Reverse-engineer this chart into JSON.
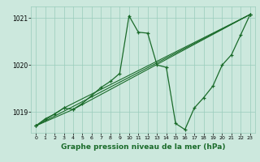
{
  "bg_color": "#cce8dd",
  "grid_color": "#99ccbb",
  "line_color": "#1a6b2a",
  "xlabel": "Graphe pression niveau de la mer (hPa)",
  "xlabel_fontsize": 6.5,
  "xlim": [
    -0.5,
    23.5
  ],
  "ylim": [
    1018.55,
    1021.25
  ],
  "yticks": [
    1019,
    1020,
    1021
  ],
  "xticks": [
    0,
    1,
    2,
    3,
    4,
    5,
    6,
    7,
    8,
    9,
    10,
    11,
    12,
    13,
    14,
    15,
    16,
    17,
    18,
    19,
    20,
    21,
    22,
    23
  ],
  "line1_x": [
    0,
    1,
    2,
    3,
    4,
    5,
    6,
    7,
    8,
    9,
    10,
    11,
    12,
    13,
    14,
    15,
    16,
    17,
    18,
    19,
    20,
    21,
    22,
    23
  ],
  "line1_y": [
    1018.7,
    1018.85,
    1018.95,
    1019.08,
    1019.05,
    1019.18,
    1019.35,
    1019.52,
    1019.65,
    1019.82,
    1021.05,
    1020.7,
    1020.68,
    1020.0,
    1019.95,
    1018.75,
    1018.62,
    1019.08,
    1019.3,
    1019.55,
    1020.0,
    1020.22,
    1020.65,
    1021.08
  ],
  "line2_x": [
    0,
    23
  ],
  "line2_y": [
    1018.7,
    1021.08
  ],
  "line3_x": [
    0,
    4,
    23
  ],
  "line3_y": [
    1018.7,
    1019.05,
    1021.08
  ],
  "line4_x": [
    0,
    3,
    23
  ],
  "line4_y": [
    1018.7,
    1019.08,
    1021.08
  ]
}
